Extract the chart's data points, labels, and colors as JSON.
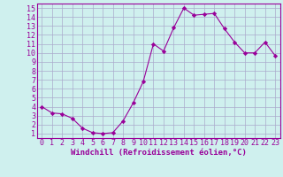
{
  "x": [
    0,
    1,
    2,
    3,
    4,
    5,
    6,
    7,
    8,
    9,
    10,
    11,
    12,
    13,
    14,
    15,
    16,
    17,
    18,
    19,
    20,
    21,
    22,
    23
  ],
  "y": [
    4.0,
    3.3,
    3.2,
    2.7,
    1.6,
    1.1,
    1.0,
    1.1,
    2.4,
    4.4,
    6.8,
    11.0,
    10.2,
    12.8,
    15.0,
    14.2,
    14.3,
    14.4,
    12.7,
    11.2,
    10.0,
    10.0,
    11.2,
    9.7
  ],
  "line_color": "#990099",
  "marker": "D",
  "marker_size": 2.2,
  "bg_color": "#cff0ee",
  "grid_color": "#aaaacc",
  "xlabel": "Windchill (Refroidissement éolien,°C)",
  "xlabel_fontsize": 6.5,
  "xlim": [
    -0.5,
    23.5
  ],
  "ylim": [
    0.5,
    15.5
  ],
  "xticks": [
    0,
    1,
    2,
    3,
    4,
    5,
    6,
    7,
    8,
    9,
    10,
    11,
    12,
    13,
    14,
    15,
    16,
    17,
    18,
    19,
    20,
    21,
    22,
    23
  ],
  "yticks": [
    1,
    2,
    3,
    4,
    5,
    6,
    7,
    8,
    9,
    10,
    11,
    12,
    13,
    14,
    15
  ],
  "tick_fontsize": 6.0,
  "tick_color": "#990099",
  "spine_color": "#990099"
}
